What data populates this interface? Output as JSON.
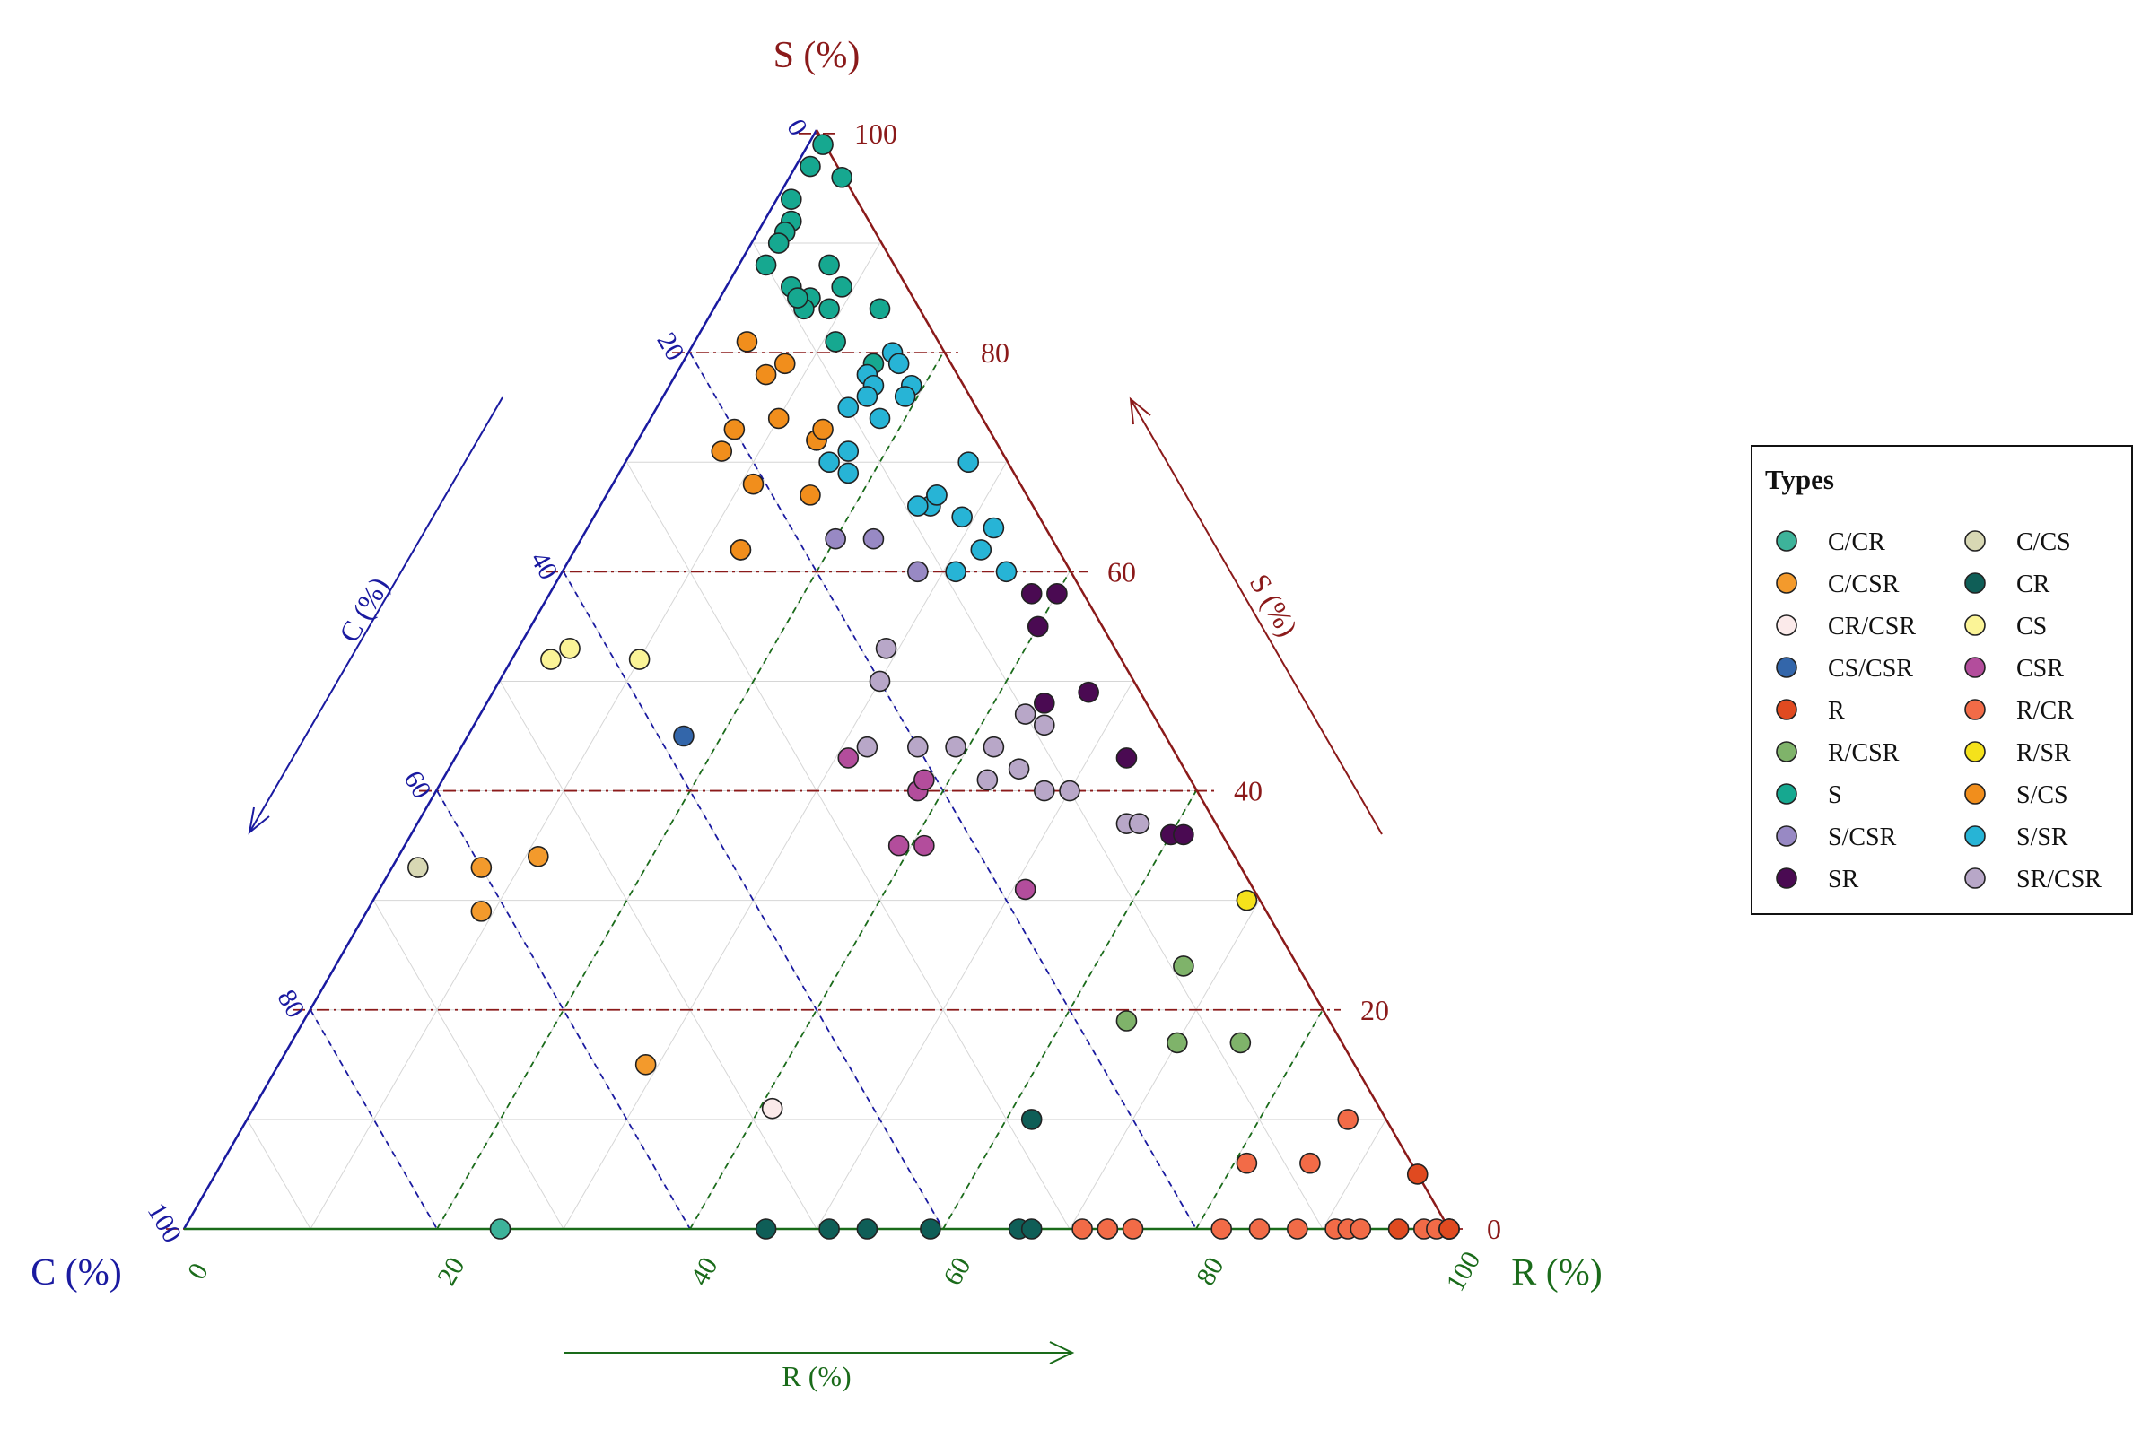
{
  "chart_data": {
    "type": "scatter",
    "subtype": "ternary",
    "axes": {
      "S": {
        "label": "S (%)",
        "arrow_label": "S (%)",
        "ticks": [
          "100",
          "80",
          "60",
          "40",
          "20",
          "0"
        ],
        "color": "#8b1a1a"
      },
      "C": {
        "label": "C (%)",
        "arrow_label": "C (%)",
        "ticks": [
          "0",
          "20",
          "40",
          "60",
          "80",
          "100"
        ],
        "color": "#1a1aa0"
      },
      "R": {
        "label": "R (%)",
        "arrow_label": "R (%)",
        "ticks": [
          "0",
          "20",
          "40",
          "60",
          "80",
          "100"
        ],
        "color": "#1a6b1a"
      }
    },
    "legend": {
      "title": "Types",
      "placement": "right",
      "items": [
        {
          "name": "C/CR",
          "color": "#3db39a"
        },
        {
          "name": "C/CS",
          "color": "#d8d8b4"
        },
        {
          "name": "C/CSR",
          "color": "#f39a2c"
        },
        {
          "name": "CR",
          "color": "#0f5e57"
        },
        {
          "name": "CR/CSR",
          "color": "#fbeaea"
        },
        {
          "name": "CS",
          "color": "#fbf497"
        },
        {
          "name": "CS/CSR",
          "color": "#3366aa"
        },
        {
          "name": "CSR",
          "color": "#b34d9c"
        },
        {
          "name": "R",
          "color": "#e04a20"
        },
        {
          "name": "R/CR",
          "color": "#f26b47"
        },
        {
          "name": "R/CSR",
          "color": "#7fb36a"
        },
        {
          "name": "R/SR",
          "color": "#f5e21b"
        },
        {
          "name": "S",
          "color": "#16a890"
        },
        {
          "name": "S/CS",
          "color": "#f18e1c"
        },
        {
          "name": "S/CSR",
          "color": "#9889c4"
        },
        {
          "name": "S/SR",
          "color": "#27b4d6"
        },
        {
          "name": "SR",
          "color": "#4a0a52"
        },
        {
          "name": "SR/CSR",
          "color": "#b8a7c8"
        }
      ]
    },
    "grid": true,
    "points": [
      {
        "type": "S",
        "c": 0,
        "s": 99,
        "r": 1
      },
      {
        "type": "S",
        "c": 2,
        "s": 97,
        "r": 1
      },
      {
        "type": "S",
        "c": 0,
        "s": 96,
        "r": 4
      },
      {
        "type": "S",
        "c": 5,
        "s": 94,
        "r": 1
      },
      {
        "type": "S",
        "c": 6,
        "s": 92,
        "r": 2
      },
      {
        "type": "S",
        "c": 7,
        "s": 91,
        "r": 2
      },
      {
        "type": "S",
        "c": 8,
        "s": 90,
        "r": 2
      },
      {
        "type": "S",
        "c": 10,
        "s": 88,
        "r": 2
      },
      {
        "type": "S",
        "c": 5,
        "s": 88,
        "r": 7
      },
      {
        "type": "S",
        "c": 5,
        "s": 86,
        "r": 9
      },
      {
        "type": "S",
        "c": 9,
        "s": 86,
        "r": 5
      },
      {
        "type": "S",
        "c": 8,
        "s": 85,
        "r": 7
      },
      {
        "type": "S",
        "c": 9,
        "s": 84,
        "r": 7
      },
      {
        "type": "S",
        "c": 9,
        "s": 85,
        "r": 6
      },
      {
        "type": "S",
        "c": 7,
        "s": 84,
        "r": 9
      },
      {
        "type": "S",
        "c": 3,
        "s": 84,
        "r": 13
      },
      {
        "type": "S",
        "c": 8,
        "s": 81,
        "r": 11
      },
      {
        "type": "S",
        "c": 6,
        "s": 79,
        "r": 15
      },
      {
        "type": "S/SR",
        "c": 4,
        "s": 80,
        "r": 16
      },
      {
        "type": "S/SR",
        "c": 4,
        "s": 79,
        "r": 17
      },
      {
        "type": "S/SR",
        "c": 7,
        "s": 78,
        "r": 15
      },
      {
        "type": "S/SR",
        "c": 4,
        "s": 77,
        "r": 19
      },
      {
        "type": "S/SR",
        "c": 7,
        "s": 77,
        "r": 16
      },
      {
        "type": "S/SR",
        "c": 5,
        "s": 76,
        "r": 19
      },
      {
        "type": "S/SR",
        "c": 8,
        "s": 76,
        "r": 16
      },
      {
        "type": "S/SR",
        "c": 10,
        "s": 75,
        "r": 15
      },
      {
        "type": "S/SR",
        "c": 8,
        "s": 74,
        "r": 18
      },
      {
        "type": "S/SR",
        "c": 14,
        "s": 72,
        "r": 14
      },
      {
        "type": "S/SR",
        "c": 12,
        "s": 71,
        "r": 17
      },
      {
        "type": "S/SR",
        "c": 14,
        "s": 70,
        "r": 16
      },
      {
        "type": "S/SR",
        "c": 13,
        "s": 69,
        "r": 18
      },
      {
        "type": "S/SR",
        "c": 3,
        "s": 70,
        "r": 27
      },
      {
        "type": "S/SR",
        "c": 8,
        "s": 66,
        "r": 26
      },
      {
        "type": "S/SR",
        "c": 7,
        "s": 67,
        "r": 26
      },
      {
        "type": "S/SR",
        "c": 6,
        "s": 65,
        "r": 29
      },
      {
        "type": "S/SR",
        "c": 4,
        "s": 64,
        "r": 32
      },
      {
        "type": "S/SR",
        "c": 6,
        "s": 62,
        "r": 32
      },
      {
        "type": "S/SR",
        "c": 5,
        "s": 60,
        "r": 35
      },
      {
        "type": "S/SR",
        "c": 9,
        "s": 60,
        "r": 31
      },
      {
        "type": "S/SR",
        "c": 7,
        "s": 67,
        "r": 26
      },
      {
        "type": "S/SR",
        "c": 9,
        "s": 66,
        "r": 25
      },
      {
        "type": "S/CS",
        "c": 15,
        "s": 81,
        "r": 4
      },
      {
        "type": "S/CS",
        "c": 15,
        "s": 78,
        "r": 7
      },
      {
        "type": "S/CS",
        "c": 13,
        "s": 79,
        "r": 8
      },
      {
        "type": "S/CS",
        "c": 20,
        "s": 73,
        "r": 7
      },
      {
        "type": "S/CS",
        "c": 16,
        "s": 74,
        "r": 10
      },
      {
        "type": "S/CS",
        "c": 14,
        "s": 72,
        "r": 14
      },
      {
        "type": "S/CS",
        "c": 13,
        "s": 73,
        "r": 14
      },
      {
        "type": "S/CS",
        "c": 22,
        "s": 71,
        "r": 7
      },
      {
        "type": "S/CS",
        "c": 21,
        "s": 68,
        "r": 11
      },
      {
        "type": "S/CS",
        "c": 17,
        "s": 67,
        "r": 16
      },
      {
        "type": "S/CS",
        "c": 25,
        "s": 62,
        "r": 13
      },
      {
        "type": "S/CS",
        "c": 25,
        "s": 62,
        "r": 13
      },
      {
        "type": "C/CSR",
        "c": 60,
        "s": 33,
        "r": 7
      },
      {
        "type": "C/CSR",
        "c": 55,
        "s": 34,
        "r": 11
      },
      {
        "type": "C/CSR",
        "c": 62,
        "s": 29,
        "r": 9
      },
      {
        "type": "C/CSR",
        "c": 56,
        "s": 15,
        "r": 29
      },
      {
        "type": "C/CS",
        "c": 65,
        "s": 33,
        "r": 2
      },
      {
        "type": "CS",
        "c": 45,
        "s": 52,
        "r": 3
      },
      {
        "type": "CS",
        "c": 43,
        "s": 53,
        "r": 4
      },
      {
        "type": "CS",
        "c": 38,
        "s": 52,
        "r": 10
      },
      {
        "type": "CS/CSR",
        "c": 38,
        "s": 45,
        "r": 17
      },
      {
        "type": "CR/CSR",
        "c": 48,
        "s": 11,
        "r": 41
      },
      {
        "type": "S/CSR",
        "c": 17,
        "s": 63,
        "r": 20
      },
      {
        "type": "S/CSR",
        "c": 14,
        "s": 63,
        "r": 23
      },
      {
        "type": "S/CSR",
        "c": 12,
        "s": 60,
        "r": 28
      },
      {
        "type": "SR/CSR",
        "c": 18,
        "s": 53,
        "r": 29
      },
      {
        "type": "SR/CSR",
        "c": 20,
        "s": 50,
        "r": 30
      },
      {
        "type": "SR/CSR",
        "c": 24,
        "s": 44,
        "r": 32
      },
      {
        "type": "SR/CSR",
        "c": 20,
        "s": 44,
        "r": 36
      },
      {
        "type": "SR/CSR",
        "c": 17,
        "s": 44,
        "r": 39
      },
      {
        "type": "SR/CSR",
        "c": 14,
        "s": 44,
        "r": 42
      },
      {
        "type": "SR/CSR",
        "c": 16,
        "s": 41,
        "r": 43
      },
      {
        "type": "SR/CSR",
        "c": 13,
        "s": 42,
        "r": 45
      },
      {
        "type": "SR/CSR",
        "c": 12,
        "s": 40,
        "r": 48
      },
      {
        "type": "SR/CSR",
        "c": 9,
        "s": 46,
        "r": 45
      },
      {
        "type": "SR/CSR",
        "c": 10,
        "s": 40,
        "r": 50
      },
      {
        "type": "SR/CSR",
        "c": 7,
        "s": 37,
        "r": 56
      },
      {
        "type": "SR/CSR",
        "c": 6,
        "s": 37,
        "r": 57
      },
      {
        "type": "SR/CSR",
        "c": 10,
        "s": 47,
        "r": 43
      },
      {
        "type": "CSR",
        "c": 26,
        "s": 43,
        "r": 31
      },
      {
        "type": "CSR",
        "c": 22,
        "s": 40,
        "r": 38
      },
      {
        "type": "CSR",
        "c": 21,
        "s": 41,
        "r": 38
      },
      {
        "type": "CSR",
        "c": 26,
        "s": 35,
        "r": 39
      },
      {
        "type": "CSR",
        "c": 24,
        "s": 35,
        "r": 41
      },
      {
        "type": "CSR",
        "c": 18,
        "s": 31,
        "r": 51
      },
      {
        "type": "SR",
        "c": 4,
        "s": 58,
        "r": 38
      },
      {
        "type": "SR",
        "c": 2,
        "s": 58,
        "r": 40
      },
      {
        "type": "SR",
        "c": 5,
        "s": 55,
        "r": 40
      },
      {
        "type": "SR",
        "c": 4,
        "s": 49,
        "r": 47
      },
      {
        "type": "SR",
        "c": 8,
        "s": 48,
        "r": 44
      },
      {
        "type": "SR",
        "c": 4,
        "s": 43,
        "r": 53
      },
      {
        "type": "SR",
        "c": 4,
        "s": 36,
        "r": 60
      },
      {
        "type": "SR",
        "c": 3,
        "s": 36,
        "r": 61
      },
      {
        "type": "R/SR",
        "c": 1,
        "s": 30,
        "r": 69
      },
      {
        "type": "R/CSR",
        "c": 9,
        "s": 24,
        "r": 67
      },
      {
        "type": "R/CSR",
        "c": 16,
        "s": 19,
        "r": 65
      },
      {
        "type": "R/CSR",
        "c": 13,
        "s": 17,
        "r": 70
      },
      {
        "type": "R/CSR",
        "c": 8,
        "s": 17,
        "r": 75
      },
      {
        "type": "CR",
        "c": 28,
        "s": 10,
        "r": 62
      },
      {
        "type": "CR",
        "c": 54,
        "s": 0,
        "r": 46
      },
      {
        "type": "CR",
        "c": 49,
        "s": 0,
        "r": 51
      },
      {
        "type": "CR",
        "c": 46,
        "s": 0,
        "r": 54
      },
      {
        "type": "CR",
        "c": 41,
        "s": 0,
        "r": 59
      },
      {
        "type": "CR",
        "c": 34,
        "s": 0,
        "r": 66
      },
      {
        "type": "CR",
        "c": 33,
        "s": 0,
        "r": 67
      },
      {
        "type": "CR",
        "c": 27,
        "s": 0,
        "r": 73
      },
      {
        "type": "C/CR",
        "c": 75,
        "s": 0,
        "r": 25
      },
      {
        "type": "R/CR",
        "c": 3,
        "s": 10,
        "r": 87
      },
      {
        "type": "R/CR",
        "c": 13,
        "s": 6,
        "r": 81
      },
      {
        "type": "R/CR",
        "c": 8,
        "s": 6,
        "r": 86
      },
      {
        "type": "R/CR",
        "c": 29,
        "s": 0,
        "r": 71
      },
      {
        "type": "R/CR",
        "c": 27,
        "s": 0,
        "r": 73
      },
      {
        "type": "R/CR",
        "c": 25,
        "s": 0,
        "r": 75
      },
      {
        "type": "R/CR",
        "c": 18,
        "s": 0,
        "r": 82
      },
      {
        "type": "R/CR",
        "c": 15,
        "s": 0,
        "r": 85
      },
      {
        "type": "R/CR",
        "c": 12,
        "s": 0,
        "r": 88
      },
      {
        "type": "R/CR",
        "c": 9,
        "s": 0,
        "r": 91
      },
      {
        "type": "R/CR",
        "c": 8,
        "s": 0,
        "r": 92
      },
      {
        "type": "R/CR",
        "c": 7,
        "s": 0,
        "r": 93
      },
      {
        "type": "R/CR",
        "c": 2,
        "s": 0,
        "r": 98
      },
      {
        "type": "R/CR",
        "c": 1,
        "s": 0,
        "r": 99
      },
      {
        "type": "R",
        "c": 0,
        "s": 5,
        "r": 95
      },
      {
        "type": "R",
        "c": 4,
        "s": 0,
        "r": 96
      },
      {
        "type": "R",
        "c": 0,
        "s": 0,
        "r": 100
      },
      {
        "type": "R",
        "c": 0,
        "s": 0,
        "r": 100
      },
      {
        "type": "R",
        "c": 0,
        "s": 0,
        "r": 100
      },
      {
        "type": "R",
        "c": 0,
        "s": 0,
        "r": 100
      }
    ]
  }
}
